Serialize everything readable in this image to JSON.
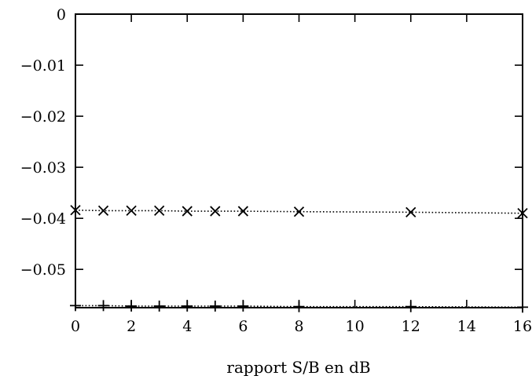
{
  "chart_data": {
    "type": "line",
    "title": "",
    "xlabel": "rapport S/B en dB",
    "ylabel": "",
    "xlim": [
      0,
      16
    ],
    "ylim": [
      -0.0575,
      0
    ],
    "x_ticks": [
      0,
      2,
      4,
      6,
      8,
      10,
      12,
      14,
      16
    ],
    "x_tick_labels": [
      "0",
      "2",
      "4",
      "6",
      "8",
      "10",
      "12",
      "14",
      "16"
    ],
    "y_ticks": [
      0,
      -0.01,
      -0.02,
      -0.03,
      -0.04,
      -0.05
    ],
    "y_tick_labels": [
      "0",
      "−0.01",
      "−0.02",
      "−0.03",
      "−0.04",
      "−0.05"
    ],
    "grid": false,
    "legend": "none",
    "series": [
      {
        "marker": "x",
        "x": [
          0,
          1,
          2,
          3,
          4,
          5,
          6,
          8,
          12,
          16
        ],
        "values": [
          -0.0384,
          -0.0385,
          -0.0385,
          -0.0385,
          -0.0386,
          -0.0386,
          -0.0386,
          -0.0387,
          -0.0388,
          -0.039
        ]
      },
      {
        "marker": "+",
        "x": [
          0,
          1,
          2,
          3,
          4,
          5,
          6,
          8,
          12,
          16
        ],
        "values": [
          -0.0571,
          -0.0571,
          -0.0572,
          -0.0572,
          -0.0572,
          -0.0572,
          -0.0572,
          -0.0573,
          -0.0573,
          -0.0574
        ]
      }
    ]
  }
}
